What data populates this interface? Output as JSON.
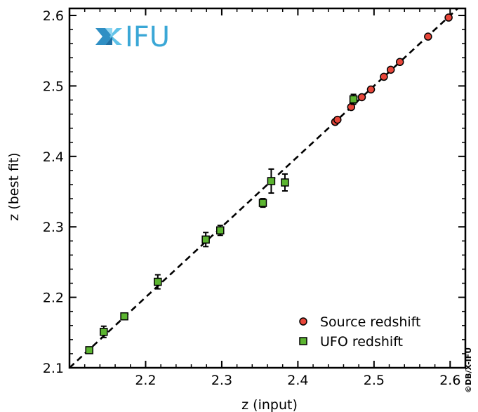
{
  "chart_data": {
    "type": "scatter",
    "xlabel": "z (input)",
    "ylabel": "z (best fit)",
    "xlim": [
      2.1,
      2.62
    ],
    "ylim": [
      2.1,
      2.61
    ],
    "x_ticks": [
      "2.2",
      "2.3",
      "2.4",
      "2.5",
      "2.6"
    ],
    "y_ticks": [
      "2.1",
      "2.2",
      "2.3",
      "2.4",
      "2.5",
      "2.6"
    ],
    "x_tick_values": [
      2.2,
      2.3,
      2.4,
      2.5,
      2.6
    ],
    "y_tick_values": [
      2.1,
      2.2,
      2.3,
      2.4,
      2.5,
      2.6
    ],
    "grid": false,
    "legend_position": "bottom-right",
    "reference_line": {
      "style": "dashed",
      "color": "#000000",
      "from": [
        2.1,
        2.1
      ],
      "to": [
        2.62,
        2.62
      ]
    },
    "logo_text": "IFU",
    "credit": "©DB/X-IFU",
    "series": [
      {
        "name": "Source redshift",
        "marker": "circle",
        "color": "#e8463a",
        "points": [
          {
            "x": 2.449,
            "y": 2.449,
            "err": 0.0015
          },
          {
            "x": 2.452,
            "y": 2.452,
            "err": 0.0015
          },
          {
            "x": 2.47,
            "y": 2.47,
            "err": 0.0015
          },
          {
            "x": 2.484,
            "y": 2.484,
            "err": 0.0015
          },
          {
            "x": 2.496,
            "y": 2.495,
            "err": 0.0015
          },
          {
            "x": 2.513,
            "y": 2.513,
            "err": 0.0015
          },
          {
            "x": 2.522,
            "y": 2.523,
            "err": 0.0015
          },
          {
            "x": 2.534,
            "y": 2.534,
            "err": 0.0015
          },
          {
            "x": 2.571,
            "y": 2.57,
            "err": 0.0015
          },
          {
            "x": 2.598,
            "y": 2.597,
            "err": 0.0015
          }
        ]
      },
      {
        "name": "UFO redshift",
        "marker": "square",
        "color": "#5cb531",
        "points": [
          {
            "x": 2.126,
            "y": 2.125,
            "err": 0.003
          },
          {
            "x": 2.145,
            "y": 2.151,
            "err": 0.008
          },
          {
            "x": 2.172,
            "y": 2.173,
            "err": 0.003
          },
          {
            "x": 2.216,
            "y": 2.222,
            "err": 0.01
          },
          {
            "x": 2.279,
            "y": 2.282,
            "err": 0.01
          },
          {
            "x": 2.298,
            "y": 2.295,
            "err": 0.007
          },
          {
            "x": 2.354,
            "y": 2.334,
            "err": 0.006
          },
          {
            "x": 2.365,
            "y": 2.365,
            "err": 0.017
          },
          {
            "x": 2.383,
            "y": 2.363,
            "err": 0.012
          },
          {
            "x": 2.473,
            "y": 2.481,
            "err": 0.007
          }
        ]
      }
    ]
  }
}
